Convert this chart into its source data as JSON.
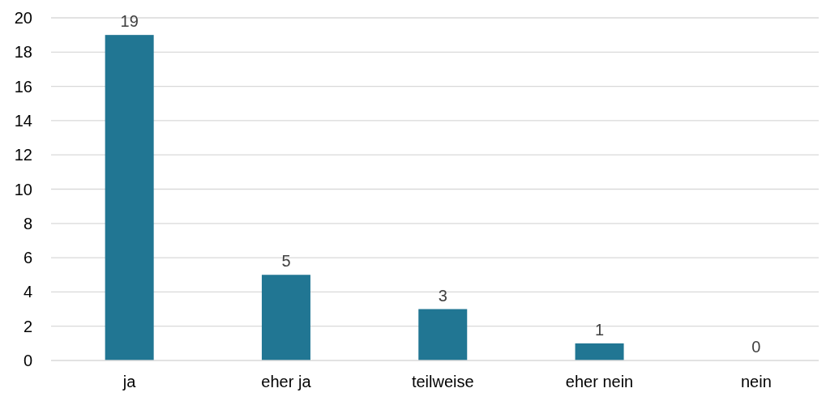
{
  "chart_data": {
    "type": "bar",
    "categories": [
      "ja",
      "eher ja",
      "teilweise",
      "eher nein",
      "nein"
    ],
    "values": [
      19,
      5,
      3,
      1,
      0
    ],
    "color": "#217693",
    "ylim": [
      0,
      20
    ],
    "yticks": [
      0,
      2,
      4,
      6,
      8,
      10,
      12,
      14,
      16,
      18,
      20
    ],
    "grid": "y",
    "data_labels": true
  }
}
